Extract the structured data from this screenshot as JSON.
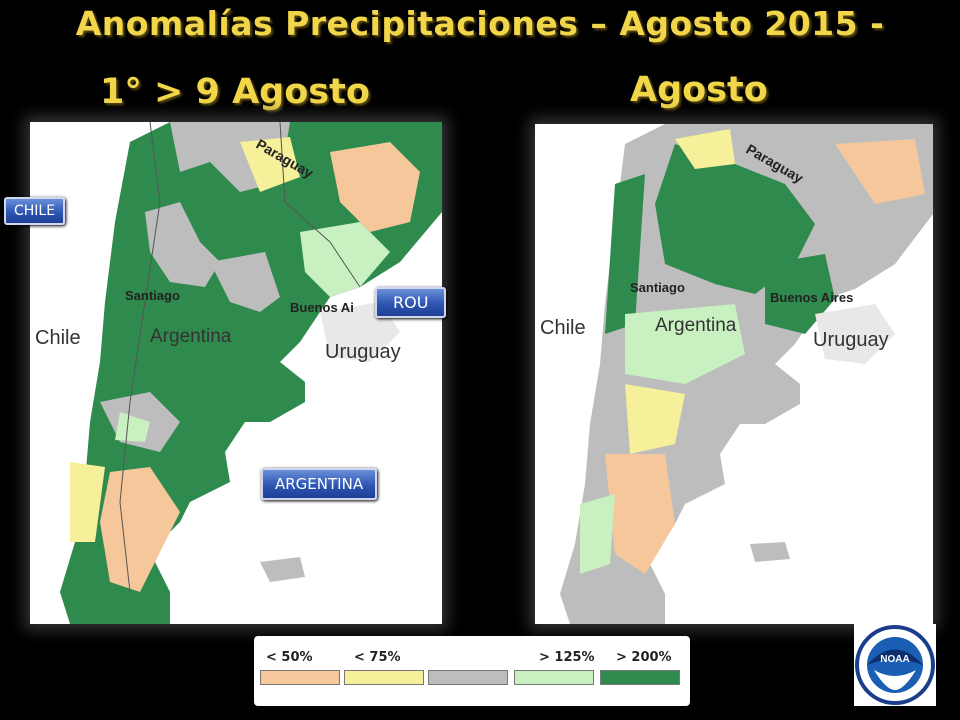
{
  "title": {
    "main": "Anomalías Precipitaciones – Agosto 2015 -",
    "left_period": "1° > 9 Agosto",
    "right_period": "Agosto"
  },
  "map_labels": {
    "paraguay": "Paraguay",
    "santiago": "Santiago",
    "chile": "Chile",
    "argentina": "Argentina",
    "uruguay": "Uruguay",
    "buenos_aires": "Buenos Aires",
    "buenos_aires_partial": "Buenos Ai"
  },
  "callouts": {
    "chile": "CHILE",
    "rou": "ROU",
    "argentina": "ARGENTINA"
  },
  "legend": {
    "items": [
      {
        "label": "< 50%",
        "color": "#f5c79a"
      },
      {
        "label": "< 75%",
        "color": "#f7f09a"
      },
      {
        "label": "",
        "color": "#bdbdbd"
      },
      {
        "label": "> 125%",
        "color": "#c8f0c0"
      },
      {
        "label": "> 200%",
        "color": "#2f8a4e"
      }
    ]
  },
  "colors": {
    "title": "#f2d64a",
    "very_wet": "#2f8a4e",
    "wet": "#c8f0c0",
    "normal": "#bdbdbd",
    "dry": "#f7f09a",
    "very_dry": "#f5c79a"
  },
  "logo": {
    "name": "NOAA",
    "icon": "noaa-logo-icon"
  }
}
